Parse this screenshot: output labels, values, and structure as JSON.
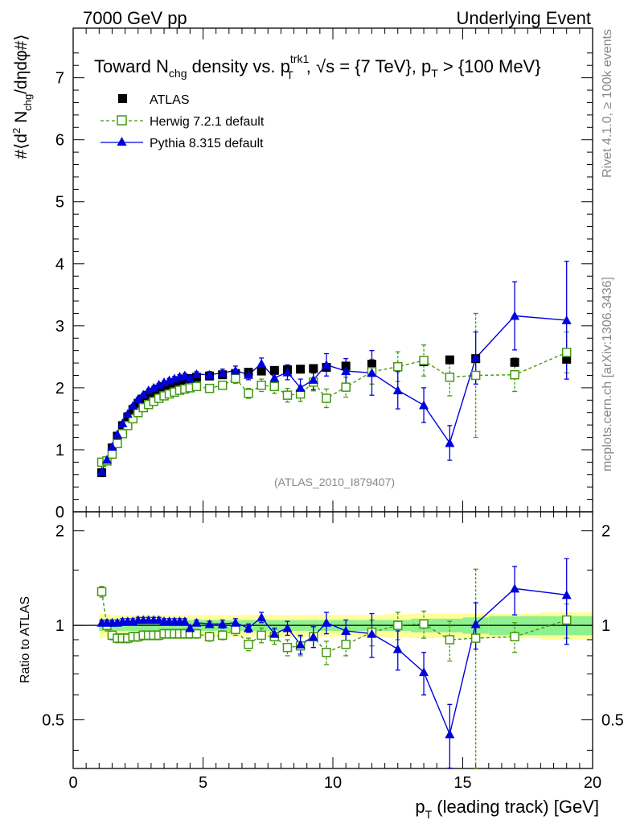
{
  "header": {
    "left": "7000 GeV pp",
    "right": "Underlying Event"
  },
  "side_labels": {
    "rivet": "Rivet 4.1.0, ≥ 100k events",
    "mcplots": "mcplots.cern.ch [arXiv:1306.3436]"
  },
  "analysis_id": "(ATLAS_2010_I879407)",
  "colors": {
    "atlas": "#000000",
    "herwig": "#449911",
    "pythia": "#0000dd",
    "band_yellow": "#ffff99",
    "band_green": "#8ef08e"
  },
  "chart_data": [
    {
      "type": "scatter",
      "panel": "main",
      "title": {
        "a": "Toward N",
        "a_sub": "chg",
        "b": " density vs. p",
        "b_sup": "trk1",
        "b_sub": "T",
        "c": ", √s = {7 TeV}, p",
        "c_sub": "T",
        "d": " > {100 MeV}"
      },
      "ylabel": {
        "a": "#⟨d",
        "a_sup": "2",
        "b": " N",
        "b_sub": "chg",
        "c": "/dηdφ#⟩"
      },
      "xlim": [
        0,
        20
      ],
      "ylim": [
        0,
        7.8
      ],
      "yticks": [
        0,
        1,
        2,
        3,
        4,
        5,
        6,
        7
      ],
      "ytick_labels": [
        "0",
        "1",
        "2",
        "3",
        "4",
        "5",
        "6",
        "7"
      ],
      "legend_position": "top-left",
      "legend": [
        "ATLAS",
        "Herwig 7.2.1 default",
        "Pythia 8.315 default"
      ],
      "series": [
        {
          "name": "ATLAS",
          "style": "marker",
          "x": [
            1.1,
            1.3,
            1.5,
            1.7,
            1.9,
            2.1,
            2.3,
            2.5,
            2.7,
            2.9,
            3.1,
            3.3,
            3.5,
            3.7,
            3.9,
            4.1,
            4.3,
            4.5,
            4.75,
            5.25,
            5.75,
            6.25,
            6.75,
            7.25,
            7.75,
            8.25,
            8.75,
            9.25,
            9.75,
            10.5,
            11.5,
            12.5,
            13.5,
            14.5,
            15.5,
            17.0,
            19.0
          ],
          "y": [
            0.63,
            0.82,
            1.03,
            1.22,
            1.39,
            1.53,
            1.65,
            1.75,
            1.82,
            1.88,
            1.93,
            1.98,
            2.02,
            2.05,
            2.08,
            2.11,
            2.13,
            2.15,
            2.17,
            2.19,
            2.21,
            2.23,
            2.25,
            2.27,
            2.28,
            2.29,
            2.3,
            2.31,
            2.33,
            2.35,
            2.38,
            2.34,
            2.42,
            2.45,
            2.47,
            2.41,
            2.46
          ]
        },
        {
          "name": "Herwig 7.2.1 default",
          "style": "dashed-open-square",
          "x": [
            1.1,
            1.3,
            1.5,
            1.7,
            1.9,
            2.1,
            2.3,
            2.5,
            2.7,
            2.9,
            3.1,
            3.3,
            3.5,
            3.7,
            3.9,
            4.1,
            4.3,
            4.5,
            4.75,
            5.25,
            5.75,
            6.25,
            6.75,
            7.25,
            7.75,
            8.25,
            8.75,
            9.25,
            9.75,
            10.5,
            11.5,
            12.5,
            13.5,
            14.5,
            15.5,
            17.0,
            19.0
          ],
          "y": [
            0.8,
            0.82,
            0.93,
            1.1,
            1.26,
            1.39,
            1.5,
            1.6,
            1.68,
            1.73,
            1.78,
            1.83,
            1.87,
            1.9,
            1.93,
            1.96,
            1.98,
            2.0,
            2.02,
            1.99,
            2.04,
            2.15,
            1.91,
            2.04,
            2.02,
            1.88,
            1.9,
            2.09,
            1.83,
            2.01,
            2.26,
            2.34,
            2.44,
            2.17,
            2.2,
            2.21,
            2.57
          ],
          "err": [
            0.03,
            0.03,
            0.03,
            0.03,
            0.03,
            0.03,
            0.03,
            0.03,
            0.03,
            0.03,
            0.03,
            0.03,
            0.03,
            0.03,
            0.03,
            0.03,
            0.04,
            0.04,
            0.05,
            0.05,
            0.06,
            0.08,
            0.08,
            0.1,
            0.11,
            0.11,
            0.12,
            0.14,
            0.15,
            0.16,
            0.2,
            0.24,
            0.25,
            0.3,
            1.0,
            0.27,
            0.33
          ]
        },
        {
          "name": "Pythia 8.315 default",
          "style": "solid-triangle",
          "x": [
            1.1,
            1.3,
            1.5,
            1.7,
            1.9,
            2.1,
            2.3,
            2.5,
            2.7,
            2.9,
            3.1,
            3.3,
            3.5,
            3.7,
            3.9,
            4.1,
            4.3,
            4.5,
            4.75,
            5.25,
            5.75,
            6.25,
            6.75,
            7.25,
            7.75,
            8.25,
            8.75,
            9.25,
            9.75,
            10.5,
            11.5,
            12.5,
            13.5,
            14.5,
            15.5,
            17.0,
            19.0
          ],
          "y": [
            0.65,
            0.84,
            1.05,
            1.25,
            1.43,
            1.58,
            1.71,
            1.82,
            1.89,
            1.96,
            2.0,
            2.05,
            2.09,
            2.12,
            2.15,
            2.18,
            2.2,
            2.15,
            2.22,
            2.21,
            2.24,
            2.28,
            2.21,
            2.39,
            2.16,
            2.25,
            2.0,
            2.13,
            2.37,
            2.27,
            2.24,
            1.96,
            1.72,
            1.11,
            2.48,
            3.16,
            3.09
          ],
          "err": [
            0.02,
            0.02,
            0.02,
            0.02,
            0.02,
            0.02,
            0.02,
            0.02,
            0.02,
            0.02,
            0.02,
            0.02,
            0.02,
            0.03,
            0.03,
            0.03,
            0.03,
            0.04,
            0.04,
            0.05,
            0.06,
            0.07,
            0.08,
            0.09,
            0.1,
            0.12,
            0.14,
            0.16,
            0.18,
            0.2,
            0.36,
            0.3,
            0.28,
            0.28,
            0.42,
            0.55,
            0.95
          ]
        }
      ]
    },
    {
      "type": "scatter",
      "panel": "ratio",
      "ylabel": "Ratio to ATLAS",
      "xlabel": {
        "a": "p",
        "a_sub": "T",
        "b": " (leading track) [GeV]"
      },
      "xlim": [
        0,
        20
      ],
      "ylim": [
        0.35,
        2.3
      ],
      "yscale": "log",
      "xticks": [
        0,
        5,
        10,
        15,
        20
      ],
      "xtick_labels": [
        "0",
        "5",
        "10",
        "15",
        "20"
      ],
      "yticks": [
        0.5,
        1,
        2
      ],
      "ytick_labels": [
        "0.5",
        "1",
        "2"
      ],
      "bands": {
        "x_edges": [
          1.0,
          1.2,
          1.4,
          1.6,
          1.8,
          2.0,
          2.2,
          2.4,
          2.6,
          2.8,
          3.0,
          3.2,
          3.4,
          3.6,
          3.8,
          4.0,
          4.2,
          4.4,
          4.6,
          5.0,
          5.5,
          6.0,
          6.5,
          7.0,
          7.5,
          8.0,
          8.5,
          9.0,
          9.5,
          10.0,
          11.0,
          12.0,
          13.0,
          14.0,
          15.0,
          16.0,
          18.0,
          20.0
        ],
        "stat_half_width": [
          0.04,
          0.04,
          0.04,
          0.04,
          0.04,
          0.04,
          0.04,
          0.04,
          0.04,
          0.04,
          0.04,
          0.04,
          0.04,
          0.04,
          0.04,
          0.04,
          0.04,
          0.04,
          0.04,
          0.04,
          0.04,
          0.04,
          0.04,
          0.04,
          0.04,
          0.04,
          0.04,
          0.04,
          0.04,
          0.04,
          0.04,
          0.04,
          0.05,
          0.05,
          0.06,
          0.07,
          0.07
        ],
        "total_half_width": [
          0.09,
          0.085,
          0.08,
          0.08,
          0.08,
          0.08,
          0.08,
          0.08,
          0.08,
          0.08,
          0.08,
          0.08,
          0.08,
          0.08,
          0.08,
          0.08,
          0.08,
          0.08,
          0.08,
          0.08,
          0.08,
          0.08,
          0.08,
          0.08,
          0.08,
          0.08,
          0.08,
          0.08,
          0.08,
          0.08,
          0.08,
          0.085,
          0.09,
          0.09,
          0.09,
          0.09,
          0.1
        ]
      },
      "series": [
        {
          "name": "Herwig 7.2.1 default",
          "x": [
            1.1,
            1.3,
            1.5,
            1.7,
            1.9,
            2.1,
            2.3,
            2.5,
            2.7,
            2.9,
            3.1,
            3.3,
            3.5,
            3.7,
            3.9,
            4.1,
            4.3,
            4.5,
            4.75,
            5.25,
            5.75,
            6.25,
            6.75,
            7.25,
            7.75,
            8.25,
            8.75,
            9.25,
            9.75,
            10.5,
            11.5,
            12.5,
            13.5,
            14.5,
            15.5,
            17.0,
            19.0
          ],
          "y": [
            1.28,
            1.0,
            0.93,
            0.91,
            0.91,
            0.91,
            0.92,
            0.92,
            0.93,
            0.93,
            0.93,
            0.93,
            0.94,
            0.94,
            0.94,
            0.94,
            0.94,
            0.94,
            0.94,
            0.92,
            0.93,
            0.97,
            0.87,
            0.93,
            0.92,
            0.85,
            0.86,
            0.92,
            0.82,
            0.87,
            0.95,
            1.0,
            1.01,
            0.9,
            0.91,
            0.92,
            1.04
          ],
          "err": [
            0.05,
            0.04,
            0.03,
            0.03,
            0.03,
            0.03,
            0.03,
            0.03,
            0.03,
            0.03,
            0.03,
            0.03,
            0.03,
            0.03,
            0.03,
            0.03,
            0.03,
            0.03,
            0.03,
            0.03,
            0.03,
            0.04,
            0.04,
            0.05,
            0.05,
            0.05,
            0.06,
            0.07,
            0.07,
            0.07,
            0.09,
            0.1,
            0.1,
            0.13,
            0.6,
            0.1,
            0.13
          ]
        },
        {
          "name": "Pythia 8.315 default",
          "x": [
            1.1,
            1.3,
            1.5,
            1.7,
            1.9,
            2.1,
            2.3,
            2.5,
            2.7,
            2.9,
            3.1,
            3.3,
            3.5,
            3.7,
            3.9,
            4.1,
            4.3,
            4.5,
            4.75,
            5.25,
            5.75,
            6.25,
            6.75,
            7.25,
            7.75,
            8.25,
            8.75,
            9.25,
            9.75,
            10.5,
            11.5,
            12.5,
            13.5,
            14.5,
            15.5,
            17.0,
            19.0
          ],
          "y": [
            1.02,
            1.02,
            1.02,
            1.02,
            1.03,
            1.03,
            1.03,
            1.04,
            1.04,
            1.04,
            1.04,
            1.04,
            1.03,
            1.03,
            1.03,
            1.03,
            1.03,
            0.98,
            1.02,
            1.01,
            1.01,
            1.02,
            0.98,
            1.06,
            0.94,
            0.98,
            0.87,
            0.92,
            1.02,
            0.96,
            0.94,
            0.84,
            0.71,
            0.45,
            1.01,
            1.31,
            1.25
          ],
          "err": [
            0.02,
            0.02,
            0.02,
            0.02,
            0.02,
            0.02,
            0.02,
            0.02,
            0.02,
            0.02,
            0.02,
            0.02,
            0.02,
            0.02,
            0.02,
            0.02,
            0.02,
            0.02,
            0.02,
            0.02,
            0.03,
            0.03,
            0.03,
            0.04,
            0.04,
            0.05,
            0.06,
            0.07,
            0.08,
            0.08,
            0.15,
            0.12,
            0.11,
            0.11,
            0.17,
            0.23,
            0.38
          ]
        }
      ]
    }
  ]
}
